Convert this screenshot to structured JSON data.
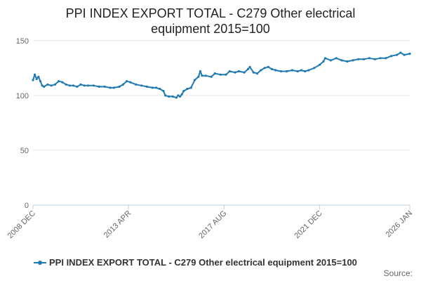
{
  "title_lines": [
    "PPI INDEX EXPORT TOTAL - C279 Other electrical",
    "equipment 2015=100"
  ],
  "source_label": "Source:",
  "colors": {
    "series": "#1f7ab3",
    "grid": "#e6e6e6",
    "axis": "#c0d0e0"
  },
  "chart_data": {
    "type": "line",
    "title": "PPI INDEX EXPORT TOTAL - C279 Other electrical equipment 2015=100",
    "xlabel": "",
    "ylabel": "",
    "ylim": [
      0,
      155
    ],
    "xlim": [
      "2008-12",
      "2026-01"
    ],
    "y_ticks": [
      0,
      50,
      100,
      150
    ],
    "x_tick_labels": [
      "2008 DEC",
      "2013 APR",
      "2017 AUG",
      "2021 DEC",
      "2026 JAN"
    ],
    "x_tick_dates": [
      "2008-12",
      "2013-04",
      "2017-08",
      "2021-12",
      "2026-01"
    ],
    "grid": "horizontal",
    "legend_position": "bottom",
    "series": [
      {
        "name": "PPI INDEX EXPORT TOTAL - C279 Other electrical equipment 2015=100",
        "points": [
          [
            "2008-12",
            114
          ],
          [
            "2009-01",
            119
          ],
          [
            "2009-02",
            115
          ],
          [
            "2009-03",
            117
          ],
          [
            "2009-04",
            113
          ],
          [
            "2009-05",
            109
          ],
          [
            "2009-06",
            108
          ],
          [
            "2009-08",
            110
          ],
          [
            "2009-10",
            109
          ],
          [
            "2009-12",
            110
          ],
          [
            "2010-02",
            113
          ],
          [
            "2010-04",
            112
          ],
          [
            "2010-06",
            110
          ],
          [
            "2010-08",
            109
          ],
          [
            "2010-10",
            109
          ],
          [
            "2010-12",
            108
          ],
          [
            "2011-02",
            110
          ],
          [
            "2011-04",
            109
          ],
          [
            "2011-06",
            109
          ],
          [
            "2011-09",
            109
          ],
          [
            "2011-12",
            108
          ],
          [
            "2012-03",
            108
          ],
          [
            "2012-06",
            107
          ],
          [
            "2012-08",
            107
          ],
          [
            "2012-11",
            108
          ],
          [
            "2013-01",
            110
          ],
          [
            "2013-03",
            113
          ],
          [
            "2013-05",
            112
          ],
          [
            "2013-08",
            110
          ],
          [
            "2013-11",
            109
          ],
          [
            "2014-02",
            108
          ],
          [
            "2014-05",
            107
          ],
          [
            "2014-07",
            107
          ],
          [
            "2014-09",
            106
          ],
          [
            "2014-11",
            104
          ],
          [
            "2014-12",
            100
          ],
          [
            "2015-02",
            99
          ],
          [
            "2015-04",
            99
          ],
          [
            "2015-06",
            98
          ],
          [
            "2015-07",
            100
          ],
          [
            "2015-08",
            99
          ],
          [
            "2015-09",
            101
          ],
          [
            "2015-10",
            104
          ],
          [
            "2015-12",
            106
          ],
          [
            "2016-02",
            107
          ],
          [
            "2016-04",
            114
          ],
          [
            "2016-06",
            117
          ],
          [
            "2016-07",
            122
          ],
          [
            "2016-08",
            118
          ],
          [
            "2016-10",
            118
          ],
          [
            "2017-01",
            117
          ],
          [
            "2017-03",
            120
          ],
          [
            "2017-06",
            119
          ],
          [
            "2017-09",
            119
          ],
          [
            "2017-11",
            122
          ],
          [
            "2018-02",
            121
          ],
          [
            "2018-04",
            122
          ],
          [
            "2018-07",
            121
          ],
          [
            "2018-09",
            124
          ],
          [
            "2018-10",
            126
          ],
          [
            "2018-12",
            121
          ],
          [
            "2019-02",
            120
          ],
          [
            "2019-04",
            123
          ],
          [
            "2019-06",
            125
          ],
          [
            "2019-08",
            126
          ],
          [
            "2019-10",
            124
          ],
          [
            "2019-12",
            123
          ],
          [
            "2020-03",
            122
          ],
          [
            "2020-06",
            122
          ],
          [
            "2020-09",
            123
          ],
          [
            "2020-12",
            122
          ],
          [
            "2021-02",
            123
          ],
          [
            "2021-04",
            122
          ],
          [
            "2021-06",
            123
          ],
          [
            "2021-09",
            125
          ],
          [
            "2021-12",
            128
          ],
          [
            "2022-02",
            131
          ],
          [
            "2022-03",
            134
          ],
          [
            "2022-06",
            132
          ],
          [
            "2022-09",
            134
          ],
          [
            "2022-12",
            132
          ],
          [
            "2023-03",
            131
          ],
          [
            "2023-06",
            132
          ],
          [
            "2023-09",
            133
          ],
          [
            "2023-12",
            133
          ],
          [
            "2024-03",
            134
          ],
          [
            "2024-06",
            133
          ],
          [
            "2024-09",
            134
          ],
          [
            "2024-12",
            134
          ],
          [
            "2025-03",
            136
          ],
          [
            "2025-06",
            137
          ],
          [
            "2025-08",
            139
          ],
          [
            "2025-10",
            137
          ],
          [
            "2026-01",
            138
          ]
        ]
      }
    ]
  }
}
